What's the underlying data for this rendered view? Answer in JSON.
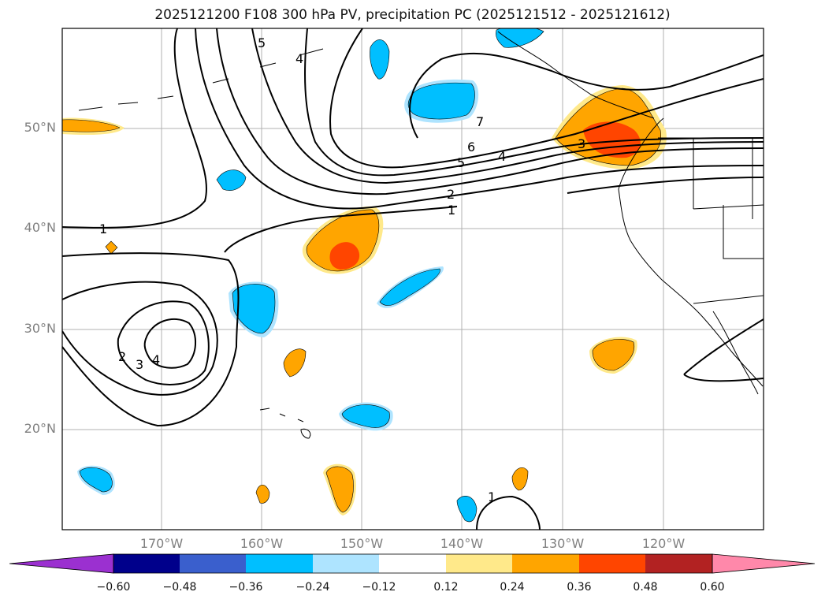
{
  "title": "2025121200 F108 300 hPa PV, precipitation PC (2025121512 - 2025121612)",
  "lat_labels": [
    "50°N",
    "40°N",
    "30°N",
    "20°N"
  ],
  "lon_labels": [
    "170°W",
    "160°W",
    "150°W",
    "140°W",
    "130°W",
    "120°W"
  ],
  "contour_labels": [
    "1",
    "1",
    "1",
    "2",
    "2",
    "3",
    "3",
    "4",
    "4",
    "4",
    "5",
    "5",
    "6",
    "7"
  ],
  "colorbar": {
    "ticks": [
      "−0.60",
      "−0.48",
      "−0.36",
      "−0.24",
      "−0.12",
      "0.12",
      "0.24",
      "0.36",
      "0.48",
      "0.60"
    ],
    "colors": [
      "#9b30d0",
      "#00008b",
      "#3a5fcd",
      "#00bfff",
      "#aee4ff",
      "#ffffff",
      "#ffe98a",
      "#ffa500",
      "#ff4500",
      "#b22222",
      "#ff88aa"
    ]
  },
  "colors": {
    "pos_low": "#ffe98a",
    "pos_mid": "#ffa500",
    "pos_high": "#ff4500",
    "neg_low": "#aee4ff",
    "neg_mid": "#00bfff",
    "gridline": "#b0b0b0",
    "contour": "#000000"
  }
}
